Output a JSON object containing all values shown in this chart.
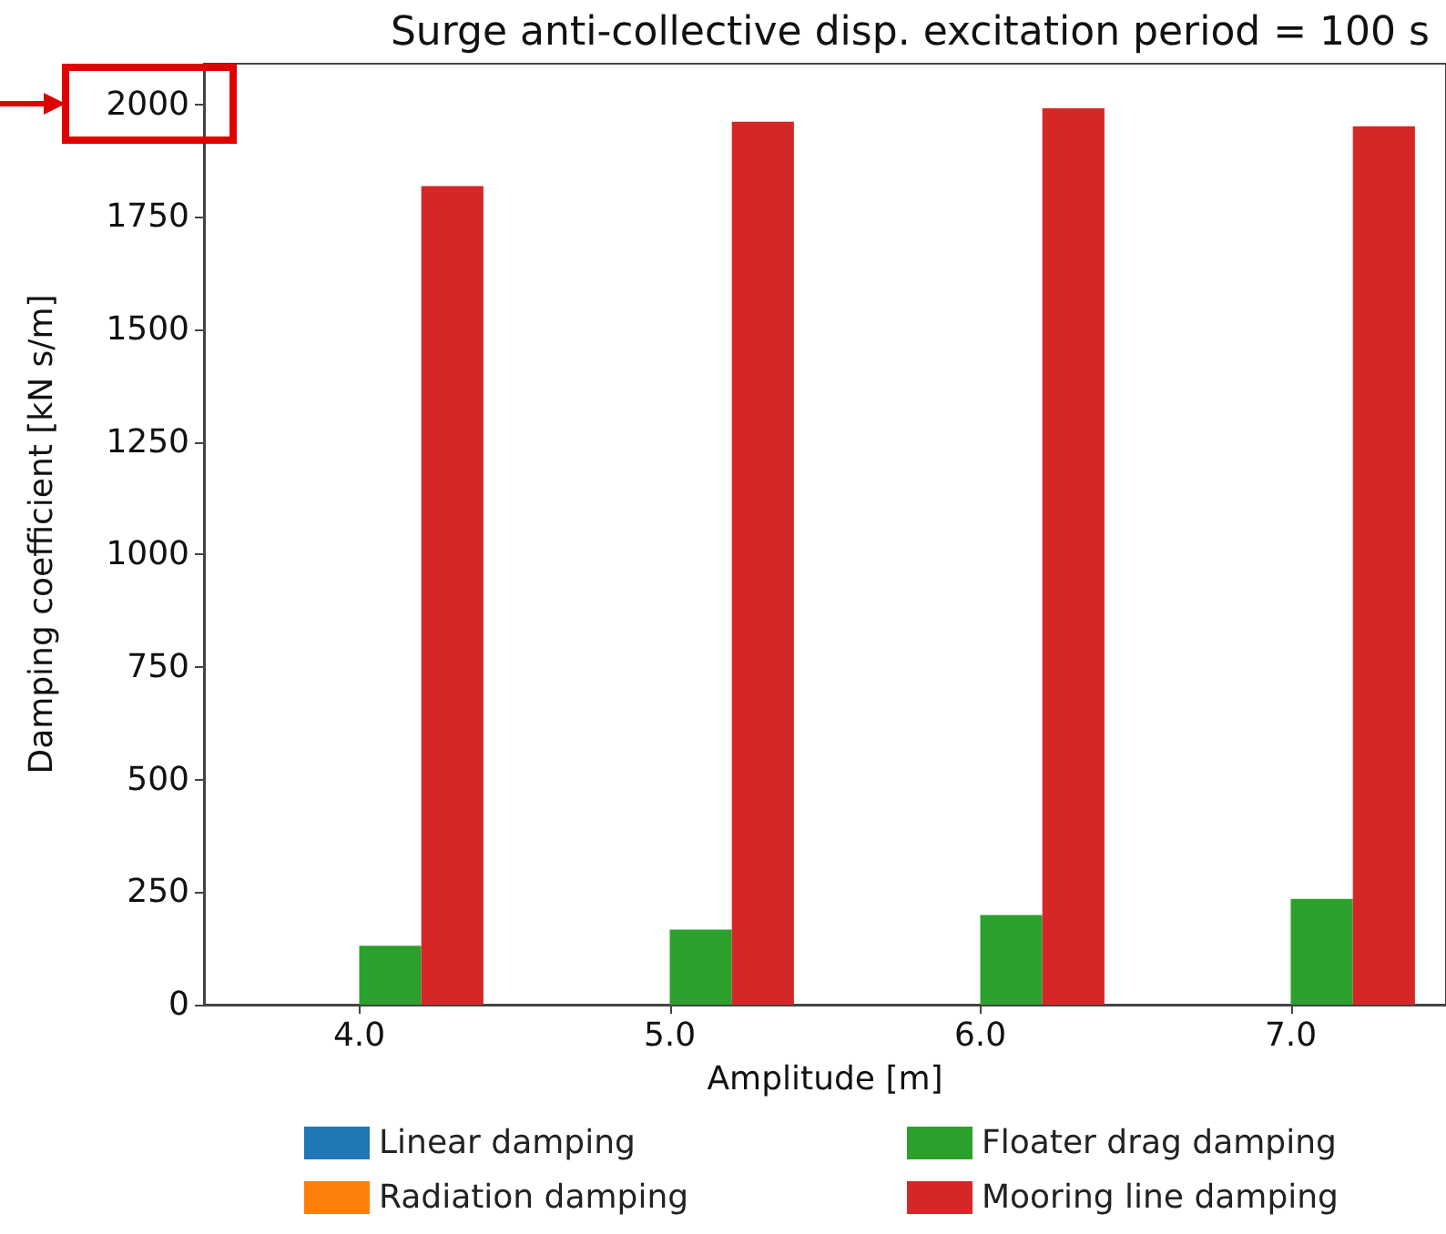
{
  "chart_data": {
    "type": "bar",
    "title": "Surge anti-collective disp. excitation period = 100 s",
    "xlabel": "Amplitude [m]",
    "ylabel": "Damping coefficient [kN s/m]",
    "categories": [
      "4.0",
      "5.0",
      "6.0",
      "7.0"
    ],
    "series": [
      {
        "name": "Linear damping",
        "color": "#1f77b4",
        "values": [
          0,
          0,
          0,
          0
        ]
      },
      {
        "name": "Radiation damping",
        "color": "#ff7f0e",
        "values": [
          0,
          0,
          0,
          0
        ]
      },
      {
        "name": "Floater drag damping",
        "color": "#2ca02c",
        "values": [
          131,
          167,
          199,
          235
        ]
      },
      {
        "name": "Mooring line damping",
        "color": "#d62728",
        "values": [
          1818,
          1961,
          1991,
          1951
        ]
      }
    ],
    "ylim": [
      0,
      2090
    ],
    "yticks": [
      0,
      250,
      500,
      750,
      1000,
      1250,
      1500,
      1750,
      2000
    ],
    "grid": false,
    "legend": "bottom"
  }
}
